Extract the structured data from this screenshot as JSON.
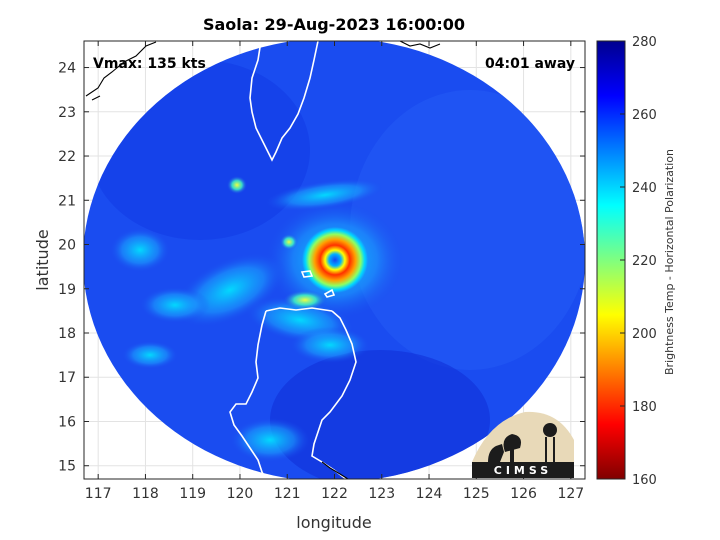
{
  "chart_data": {
    "type": "heatmap",
    "title": "Saola: 29-Aug-2023 16:00:00",
    "xlabel": "longitude",
    "ylabel": "latitude",
    "xlim": [
      116.7,
      127.3
    ],
    "ylim": [
      14.7,
      24.6
    ],
    "xticks": [
      117,
      118,
      119,
      120,
      121,
      122,
      123,
      124,
      125,
      126,
      127
    ],
    "yticks": [
      15,
      16,
      17,
      18,
      19,
      20,
      21,
      22,
      23,
      24
    ],
    "grid": true,
    "storm_name": "Saola",
    "storm_center": {
      "lon": 122.0,
      "lat": 19.65
    },
    "eye_temp": 262,
    "eyewall_temp": 190,
    "background_temp": 268,
    "annotations": {
      "left": "Vmax: 135 kts",
      "right": "04:01 away"
    },
    "colorbar": {
      "label": "Brightness Temp - Horizontal Polarization",
      "range": [
        160,
        280
      ],
      "ticks": [
        160,
        180,
        200,
        220,
        240,
        260,
        280
      ],
      "colormap": "jet"
    },
    "logo_text": "CIMSS"
  }
}
